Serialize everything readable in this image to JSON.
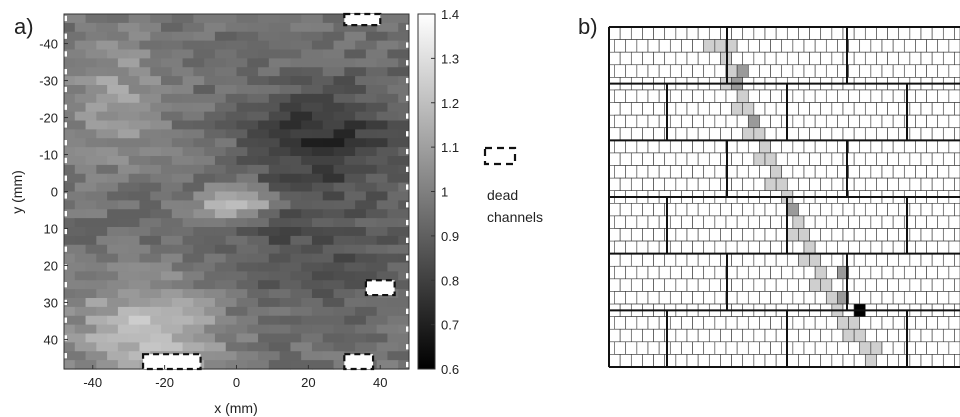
{
  "panels": {
    "a_label": "a)",
    "b_label": "b)"
  },
  "legend": {
    "line1": "dead",
    "line2": "channels"
  },
  "chart_data": [
    {
      "type": "heatmap",
      "panel": "a)",
      "xlabel": "x (mm)",
      "ylabel": "y (mm)",
      "xlim": [
        -48,
        48
      ],
      "ylim": [
        -48,
        48
      ],
      "y_reversed": true,
      "xticks": [
        -40,
        -20,
        0,
        20,
        40
      ],
      "yticks": [
        -40,
        -30,
        -20,
        -10,
        0,
        10,
        20,
        30,
        40
      ],
      "colorbar": {
        "min": 0.6,
        "max": 1.4,
        "ticks": [
          0.6,
          0.7,
          0.8,
          0.9,
          1,
          1.1,
          1.2,
          1.3,
          1.4
        ],
        "colormap": "gray"
      },
      "grid_cols": 16,
      "grid_rows": 40,
      "values_approx": {
        "background": 0.95,
        "dark_region_upper_right_x_10_to_40_y_-25_to_-5": 0.75,
        "bright_spot_x_-10_to_10_y_0_to_8": 1.25,
        "bright_lower_left_x_-40_to_-10_y_20_to_48": 1.2
      },
      "dead_channels": [
        {
          "x": [
            30,
            40
          ],
          "y": [
            -48,
            -45
          ]
        },
        {
          "x": [
            36,
            44
          ],
          "y": [
            24,
            28
          ]
        },
        {
          "x": [
            -26,
            -10
          ],
          "y": [
            44,
            48
          ]
        },
        {
          "x": [
            30,
            38
          ],
          "y": [
            44,
            48
          ]
        }
      ]
    },
    {
      "type": "heatmap",
      "panel": "b)",
      "description_values": "brick-pattern pixel map, highlighted diagonal track of pixels",
      "grid_cols": 32,
      "grid_rows": 27,
      "track_pixels": [
        [
          8,
          1
        ],
        [
          9,
          1
        ],
        [
          10,
          1
        ],
        [
          10,
          2
        ],
        [
          10,
          3
        ],
        [
          10,
          4
        ],
        [
          11,
          4
        ],
        [
          11,
          5
        ],
        [
          11,
          6
        ],
        [
          12,
          6
        ],
        [
          12,
          7
        ],
        [
          12,
          8
        ],
        [
          13,
          8
        ],
        [
          13,
          9
        ],
        [
          13,
          10
        ],
        [
          14,
          10
        ],
        [
          14,
          11
        ],
        [
          14,
          12
        ],
        [
          15,
          12
        ],
        [
          15,
          13
        ],
        [
          16,
          14
        ],
        [
          16,
          15
        ],
        [
          16,
          16
        ],
        [
          17,
          16
        ],
        [
          17,
          17
        ],
        [
          17,
          18
        ],
        [
          18,
          18
        ],
        [
          18,
          19
        ],
        [
          18,
          20
        ],
        [
          19,
          20
        ],
        [
          19,
          21
        ],
        [
          20,
          22
        ],
        [
          20,
          23
        ],
        [
          21,
          23
        ],
        [
          21,
          24
        ],
        [
          22,
          24
        ],
        [
          22,
          25
        ],
        [
          23,
          25
        ],
        [
          23,
          26
        ]
      ],
      "highlight_levels": {
        "light": 0.8,
        "medium": 0.6,
        "dark": 0.0
      },
      "medium_pixels": [
        [
          11,
          3
        ],
        [
          11,
          4
        ],
        [
          12,
          7
        ],
        [
          16,
          14
        ],
        [
          20,
          19
        ],
        [
          20,
          21
        ]
      ],
      "dark_pixels": [
        [
          22,
          22
        ]
      ]
    }
  ]
}
